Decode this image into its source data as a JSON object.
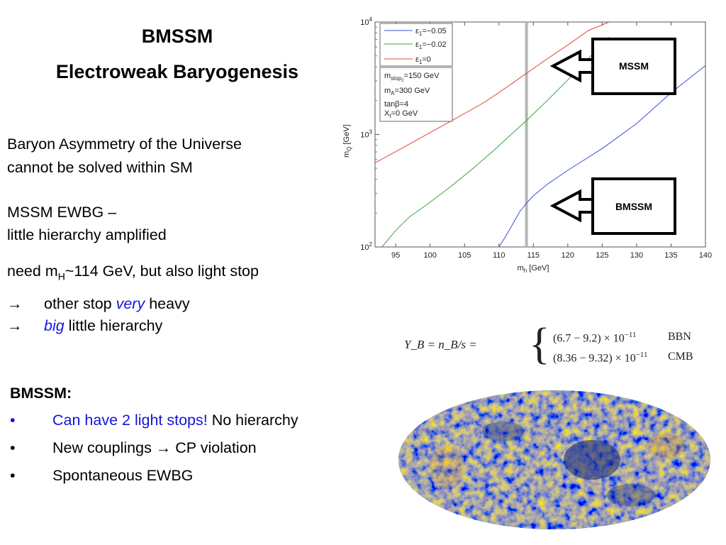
{
  "slide": {
    "title_line1": "BMSSM",
    "title_line2": "Electroweak Baryogenesis",
    "para1_line1": "Baryon Asymmetry of the Universe",
    "para1_line2": "cannot be solved within SM",
    "para2_line1": "MSSM EWBG –",
    "para2_line2": "little hierarchy amplified",
    "need_prefix": "need  m",
    "need_sub": "H",
    "need_suffix": "~114 GeV, but also light stop",
    "arrow_glyph": "→",
    "line_a_pre": "other stop ",
    "line_a_em": "very",
    "line_a_post": " heavy",
    "line_b_em": "big",
    "line_b_post": " little hierarchy",
    "bmssm_heading": "BMSSM:",
    "bullet_glyph": "•",
    "bullets": [
      {
        "blue": "Can have 2 light stops!",
        "rest": " No hierarchy"
      },
      {
        "blue": "",
        "rest": "New couplings → CP violation"
      },
      {
        "blue": "",
        "rest": "Spontaneous EWBG"
      }
    ],
    "colors": {
      "accent_blue": "#1414d8",
      "curve_blue": "#3a4fd6",
      "curve_green": "#3aa33a",
      "curve_red": "#e0453a",
      "vline_gray": "#b5b5b5"
    }
  },
  "chart_data": {
    "type": "line",
    "xlabel": "m_h [GeV]",
    "ylabel": "m_Q [GeV]",
    "xlim": [
      92,
      140
    ],
    "ylim": [
      100,
      10000
    ],
    "y_scale": "log",
    "x_ticks": [
      95,
      100,
      105,
      110,
      115,
      120,
      125,
      130,
      135,
      140
    ],
    "y_ticks": [
      {
        "base": "10",
        "exp": "2",
        "value": 100
      },
      {
        "base": "10",
        "exp": "3",
        "value": 1000
      },
      {
        "base": "10",
        "exp": "4",
        "value": 10000
      }
    ],
    "series": [
      {
        "name": "ε₁=−0.05",
        "name_parts": [
          "ε",
          "1",
          "=−0.05"
        ],
        "color": "#3a4fd6",
        "x": [
          110,
          111,
          112,
          113,
          114,
          115,
          117,
          120,
          125,
          130,
          135,
          140
        ],
        "y": [
          100,
          125,
          160,
          205,
          245,
          285,
          360,
          480,
          750,
          1250,
          2350,
          4100
        ]
      },
      {
        "name": "ε₁=−0.02",
        "name_parts": [
          "ε",
          "1",
          "=−0.02"
        ],
        "color": "#3aa33a",
        "x": [
          93,
          94,
          95,
          97,
          100,
          103,
          106,
          109,
          112,
          114,
          117,
          120,
          123,
          126
        ],
        "y": [
          100,
          118,
          140,
          185,
          250,
          345,
          485,
          700,
          1030,
          1330,
          2000,
          3050,
          4750,
          7350
        ]
      },
      {
        "name": "ε₁=0",
        "name_parts": [
          "ε",
          "1",
          "=0"
        ],
        "color": "#e0453a",
        "x": [
          92,
          96,
          100,
          104,
          108,
          111,
          114,
          117,
          120,
          123,
          126
        ],
        "y": [
          560,
          760,
          1040,
          1420,
          1950,
          2600,
          3500,
          4700,
          6250,
          8400,
          10000
        ]
      }
    ],
    "vertical_line": {
      "x": 114
    },
    "params_box": [
      {
        "pre": "m",
        "sub": "stop",
        "subsub": "2",
        "post": "=150 GeV"
      },
      {
        "pre": "m",
        "sub": "A",
        "subsub": "",
        "post": "=300 GeV"
      },
      {
        "pre": "tanβ=4",
        "sub": "",
        "subsub": "",
        "post": ""
      },
      {
        "pre": "X",
        "sub": "t",
        "subsub": "",
        "post": "=0 GeV"
      }
    ],
    "annotations": [
      {
        "label": "MSSM",
        "points_to": "ε₁=0 curve"
      },
      {
        "label": "BMSSM",
        "points_to": "ε₁=−0.05 curve"
      }
    ],
    "legend": "top-left",
    "grid": false
  },
  "formula": {
    "lhs": "Y_B = n_B/s =",
    "rows": [
      {
        "value": "(6.7  −  9.2) × 10",
        "exp": "−11",
        "label": "BBN"
      },
      {
        "value": "(8.36  −  9.32) × 10",
        "exp": "−11",
        "label": "CMB"
      }
    ]
  }
}
